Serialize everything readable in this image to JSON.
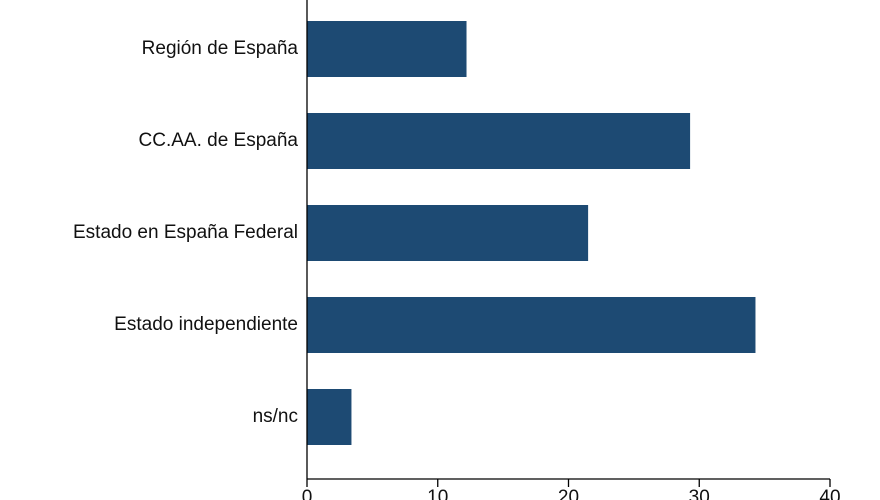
{
  "chart_data": {
    "type": "bar",
    "orientation": "horizontal",
    "categories": [
      "Región de España",
      "CC.AA. de España",
      "Estado en España Federal",
      "Estado independiente",
      "ns/nc"
    ],
    "values": [
      12.2,
      29.3,
      21.5,
      34.3,
      3.4
    ],
    "xlim": [
      0,
      40
    ],
    "xticks": [
      0,
      10,
      20,
      30,
      40
    ],
    "grid": false,
    "bar_color": "#1d4a73",
    "axis_color": "#000000"
  }
}
